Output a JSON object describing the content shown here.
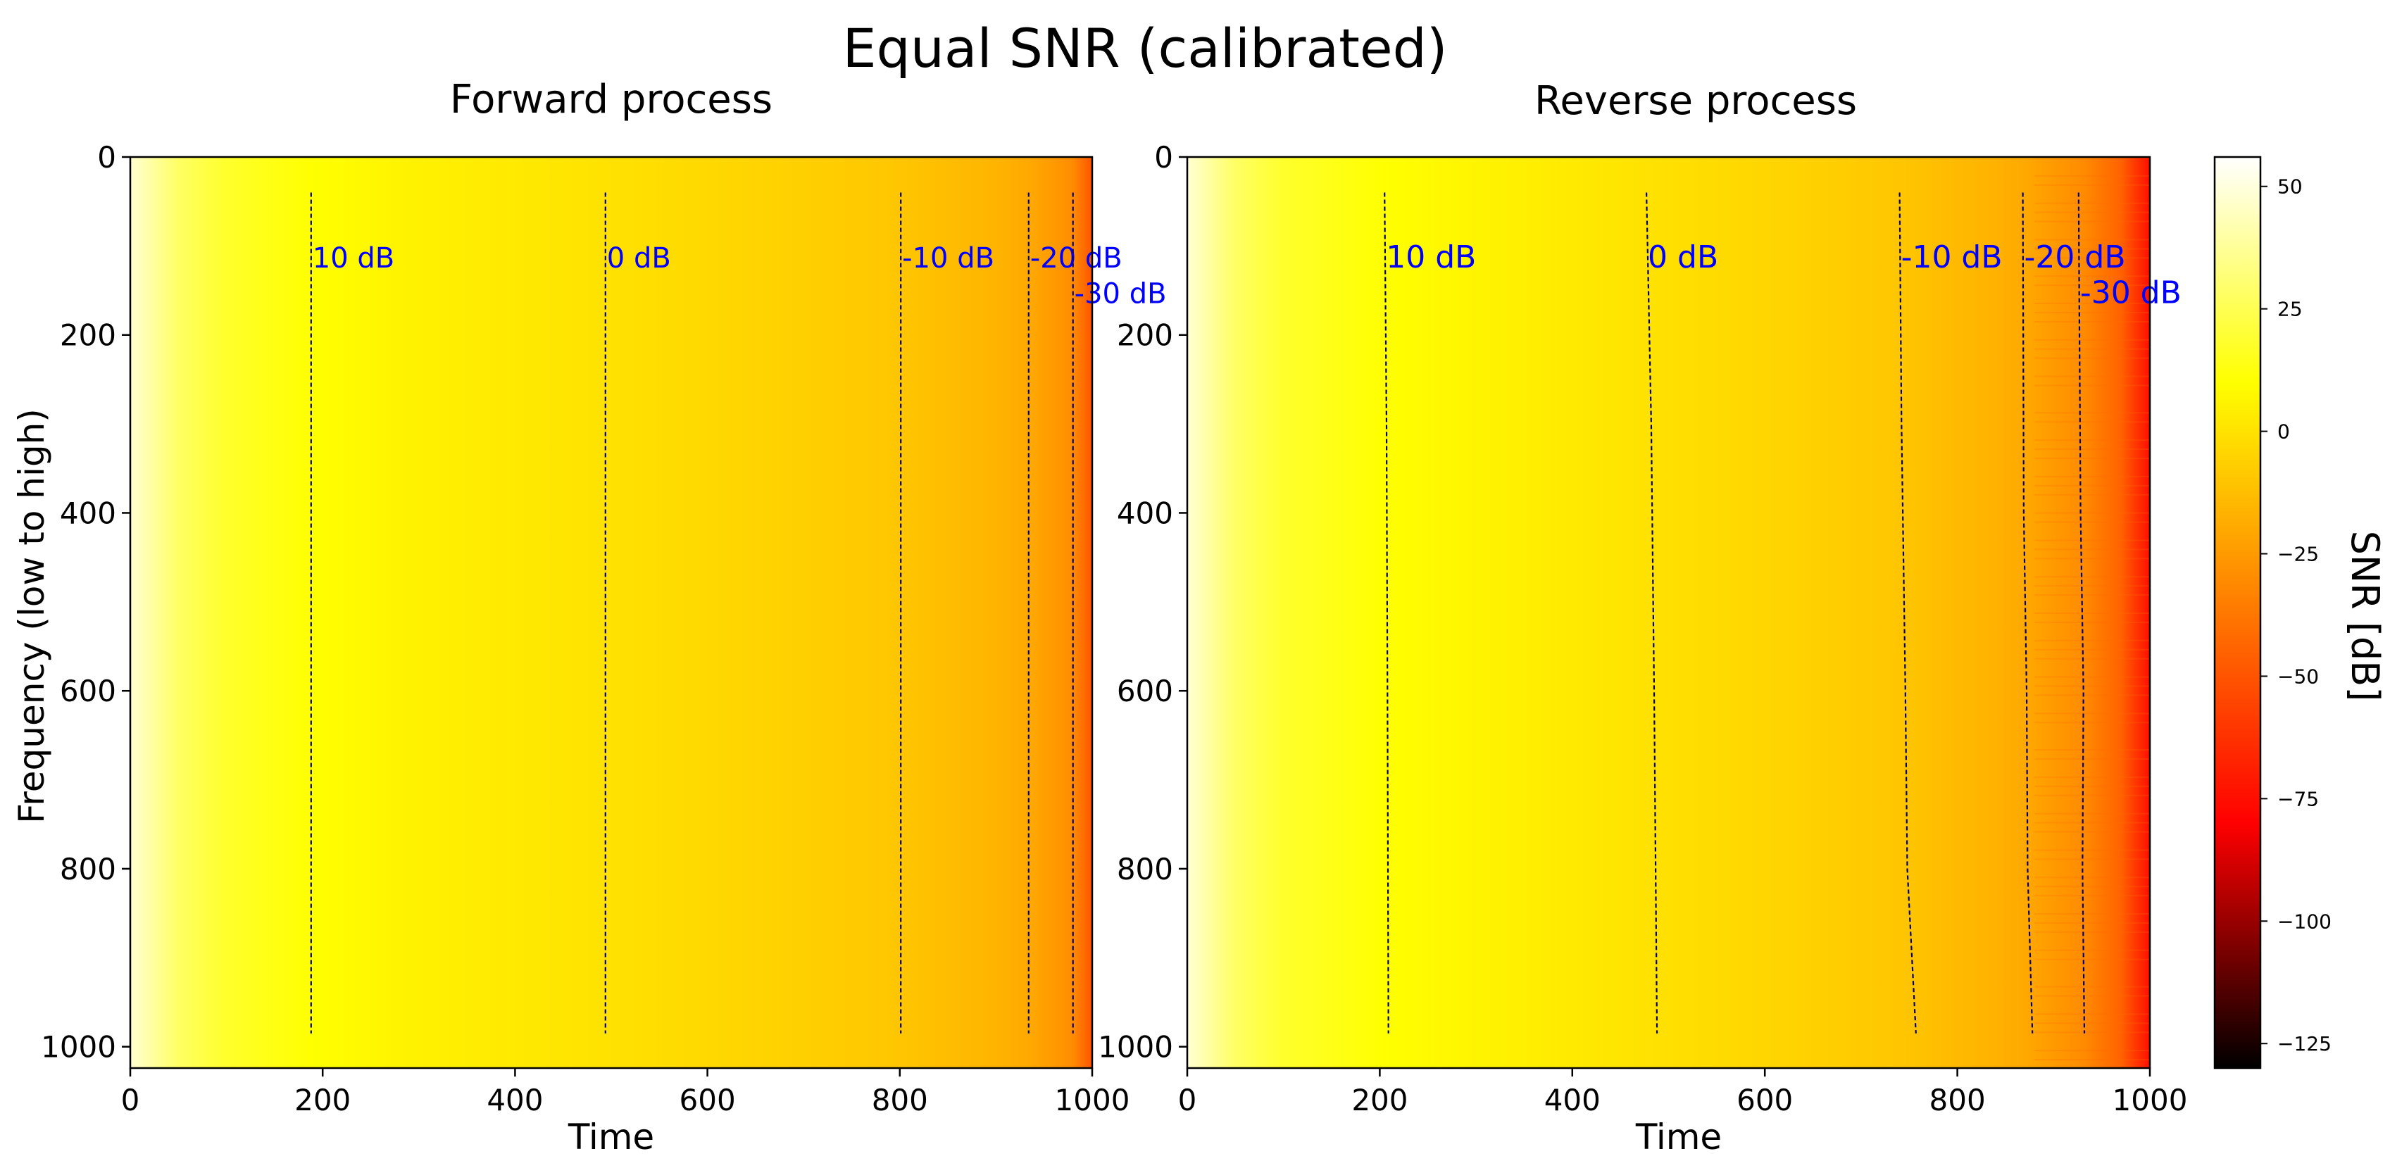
{
  "suptitle": "Equal SNR (calibrated)",
  "colors": {
    "contour": "#000080",
    "contour_label": "#0000ff",
    "colormap_name": "hot",
    "colormap_stops": [
      {
        "v": -130,
        "color": "#000000"
      },
      {
        "v": -80,
        "color": "#ff0000"
      },
      {
        "v": -30,
        "color": "#ff8c00"
      },
      {
        "v": 10,
        "color": "#ffff00"
      },
      {
        "v": 56,
        "color": "#ffffff"
      }
    ]
  },
  "chart_data": [
    {
      "type": "heatmap",
      "title": "Forward process",
      "xlabel": "Time",
      "ylabel": "Frequency (low to high)",
      "xlim": [
        0,
        1000
      ],
      "ylim": [
        1024,
        0
      ],
      "xticks": [
        0,
        200,
        400,
        600,
        800,
        1000
      ],
      "yticks": [
        0,
        200,
        400,
        600,
        800,
        1000
      ],
      "snr_profile_db": {
        "time": [
          0,
          50,
          100,
          188,
          300,
          494,
          650,
          801,
          900,
          934,
          960,
          980,
          1000
        ],
        "snr": [
          48,
          28,
          18,
          10,
          5,
          0,
          -5,
          -10,
          -16,
          -20,
          -25,
          -30,
          -50
        ]
      },
      "contours": [
        {
          "label": "10 dB",
          "points": [
            [
              188,
              40
            ],
            [
              188,
              985
            ]
          ]
        },
        {
          "label": "0 dB",
          "points": [
            [
              494,
              40
            ],
            [
              494,
              985
            ]
          ]
        },
        {
          "label": "-10 dB",
          "points": [
            [
              801,
              40
            ],
            [
              801,
              985
            ]
          ]
        },
        {
          "label": "-20 dB",
          "points": [
            [
              934,
              40
            ],
            [
              934,
              985
            ]
          ]
        },
        {
          "label": "-30 dB",
          "points": [
            [
              980,
              40
            ],
            [
              980,
              985
            ]
          ]
        }
      ]
    },
    {
      "type": "heatmap",
      "title": "Reverse process",
      "xlabel": "Time",
      "ylabel": "",
      "xlim": [
        0,
        1000
      ],
      "ylim": [
        1024,
        0
      ],
      "xticks": [
        0,
        200,
        400,
        600,
        800,
        1000
      ],
      "yticks": [
        0,
        200,
        400,
        600,
        800,
        1000
      ],
      "snr_profile_db": {
        "time": [
          0,
          50,
          100,
          205,
          330,
          477,
          620,
          740,
          830,
          870,
          900,
          930,
          970,
          1000
        ],
        "snr": [
          48,
          28,
          18,
          10,
          5,
          0,
          -5,
          -10,
          -16,
          -20,
          -25,
          -30,
          -45,
          -75
        ]
      },
      "contours": [
        {
          "label": "10 dB",
          "points": [
            [
              205,
              40
            ],
            [
              207,
              300
            ],
            [
              208,
              600
            ],
            [
              209,
              985
            ]
          ]
        },
        {
          "label": "0 dB",
          "points": [
            [
              477,
              40
            ],
            [
              482,
              300
            ],
            [
              485,
              600
            ],
            [
              488,
              985
            ]
          ]
        },
        {
          "label": "-10 dB",
          "points": [
            [
              740,
              40
            ],
            [
              742,
              300
            ],
            [
              746,
              600
            ],
            [
              748,
              800
            ],
            [
              757,
              985
            ]
          ]
        },
        {
          "label": "-20 dB",
          "points": [
            [
              868,
              40
            ],
            [
              869,
              400
            ],
            [
              872,
              600
            ],
            [
              873,
              800
            ],
            [
              878,
              985
            ]
          ]
        },
        {
          "label": "-30 dB",
          "points": [
            [
              926,
              40
            ],
            [
              928,
              400
            ],
            [
              931,
              600
            ],
            [
              930,
              800
            ],
            [
              932,
              985
            ]
          ]
        }
      ]
    }
  ],
  "colorbar": {
    "label": "SNR [dB]",
    "range": [
      -130,
      56
    ],
    "ticks": [
      50,
      25,
      0,
      -25,
      -50,
      -75,
      -100,
      -125
    ],
    "tick_labels": [
      "50",
      "25",
      "0",
      "−25",
      "−50",
      "−75",
      "−100",
      "−125"
    ]
  }
}
